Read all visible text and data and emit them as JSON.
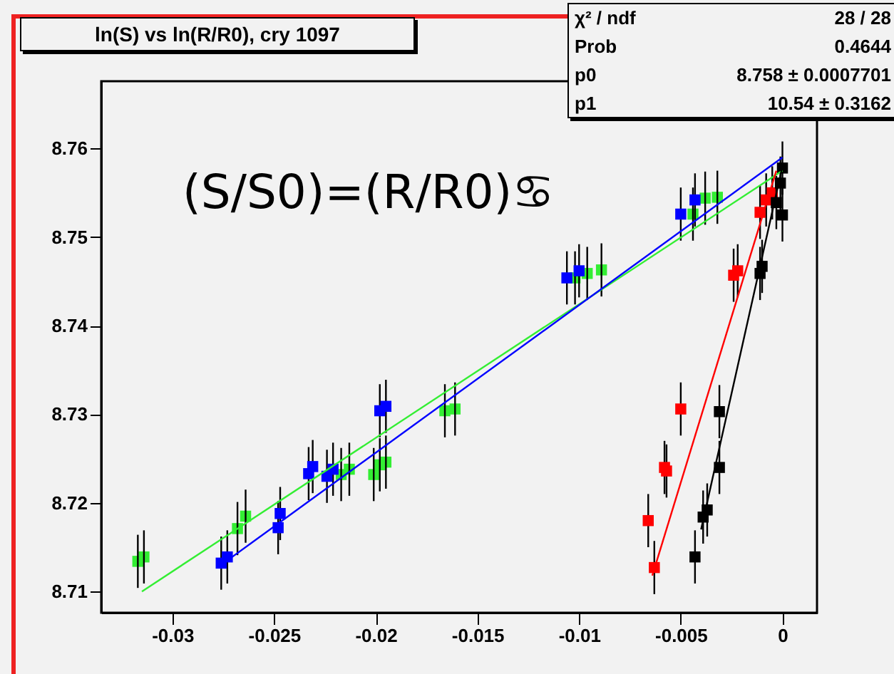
{
  "chart_data": {
    "type": "scatter",
    "title": "ln(S) vs ln(R/R0), cry 1097",
    "annotations": [
      "(S/S0)=(R/R0)♋",
      "χ² / ndf",
      "28 / 28",
      "Prob",
      "0.4644",
      "p0",
      "8.758 ± 0.0007701",
      "p1",
      "10.54 ± 0.3162"
    ],
    "xlim": [
      -0.0335,
      0.0017
    ],
    "ylim": [
      8.7076,
      8.7676
    ],
    "xticks": [
      -0.03,
      -0.025,
      -0.02,
      -0.015,
      -0.01,
      -0.005,
      0
    ],
    "yticks": [
      8.71,
      8.72,
      8.73,
      8.74,
      8.75,
      8.76
    ],
    "marker": "square",
    "grid": false,
    "series": [
      {
        "color": "#33ee33",
        "x": [
          -0.0317,
          -0.0314,
          -0.0268,
          -0.0264,
          -0.0217,
          -0.0213,
          -0.0201,
          -0.0198,
          -0.0195,
          -0.0166,
          -0.0161,
          -0.0102,
          -0.0096,
          -0.0089,
          -0.0044,
          -0.0038,
          -0.0032
        ],
        "values": [
          8.7134,
          8.7139,
          8.7171,
          8.7185,
          8.7232,
          8.7238,
          8.7232,
          8.7243,
          8.7246,
          8.7304,
          8.7306,
          8.7454,
          8.7459,
          8.7463,
          8.7526,
          8.7544,
          8.7545
        ],
        "errors": [
          0.003,
          0.003,
          0.003,
          0.003,
          0.003,
          0.003,
          0.003,
          0.003,
          0.003,
          0.003,
          0.003,
          0.003,
          0.003,
          0.003,
          0.003,
          0.003,
          0.003
        ]
      },
      {
        "color": "#0000ff",
        "x": [
          -0.0276,
          -0.0273,
          -0.0248,
          -0.0247,
          -0.0233,
          -0.0231,
          -0.0224,
          -0.0221,
          -0.0198,
          -0.0195,
          -0.0106,
          -0.01,
          -0.005,
          -0.0043
        ],
        "values": [
          8.7132,
          8.7139,
          8.7172,
          8.7188,
          8.7233,
          8.7241,
          8.723,
          8.7238,
          8.7304,
          8.7309,
          8.7454,
          8.7462,
          8.7526,
          8.7542
        ],
        "errors": [
          0.003,
          0.003,
          0.003,
          0.003,
          0.003,
          0.003,
          0.003,
          0.003,
          0.003,
          0.003,
          0.003,
          0.003,
          0.003,
          0.003
        ]
      },
      {
        "color": "#ff0000",
        "x": [
          -0.0066,
          -0.0063,
          -0.0058,
          -0.0057,
          -0.005,
          -0.0024,
          -0.0022,
          -0.0011,
          -0.0008,
          -0.0005
        ],
        "values": [
          8.718,
          8.7127,
          8.724,
          8.7236,
          8.7306,
          8.7457,
          8.7462,
          8.7528,
          8.7542,
          8.755
        ],
        "errors": [
          0.003,
          0.003,
          0.003,
          0.003,
          0.003,
          0.003,
          0.003,
          0.003,
          0.003,
          0.003
        ]
      },
      {
        "color": "#000000",
        "x": [
          -0.0043,
          -0.0039,
          -0.0037,
          -0.0031,
          -0.0031,
          -0.0011,
          -0.001,
          -0.0003,
          -0.0001,
          0.0,
          0.0
        ],
        "values": [
          8.7139,
          8.7184,
          8.7192,
          8.724,
          8.7303,
          8.7459,
          8.7467,
          8.7539,
          8.7561,
          8.7578,
          8.7525
        ],
        "errors": [
          0.003,
          0.003,
          0.003,
          0.003,
          0.003,
          0.003,
          0.003,
          0.003,
          0.003,
          0.003,
          0.003
        ]
      },
      {
        "type": "line",
        "marker": "none",
        "color": "#33ee33",
        "x": [
          -0.0315,
          0.0
        ],
        "values": [
          8.71,
          8.7575
        ]
      },
      {
        "type": "line",
        "marker": "none",
        "color": "#0000ff",
        "x": [
          -0.0276,
          0.0
        ],
        "values": [
          8.713,
          8.759
        ]
      },
      {
        "type": "line",
        "marker": "none",
        "color": "#ff0000",
        "x": [
          -0.0064,
          -0.0003
        ],
        "values": [
          8.7118,
          8.7575
        ]
      },
      {
        "type": "line",
        "marker": "none",
        "color": "#000000",
        "x": [
          -0.004,
          0.0
        ],
        "values": [
          8.717,
          8.758
        ]
      }
    ]
  }
}
